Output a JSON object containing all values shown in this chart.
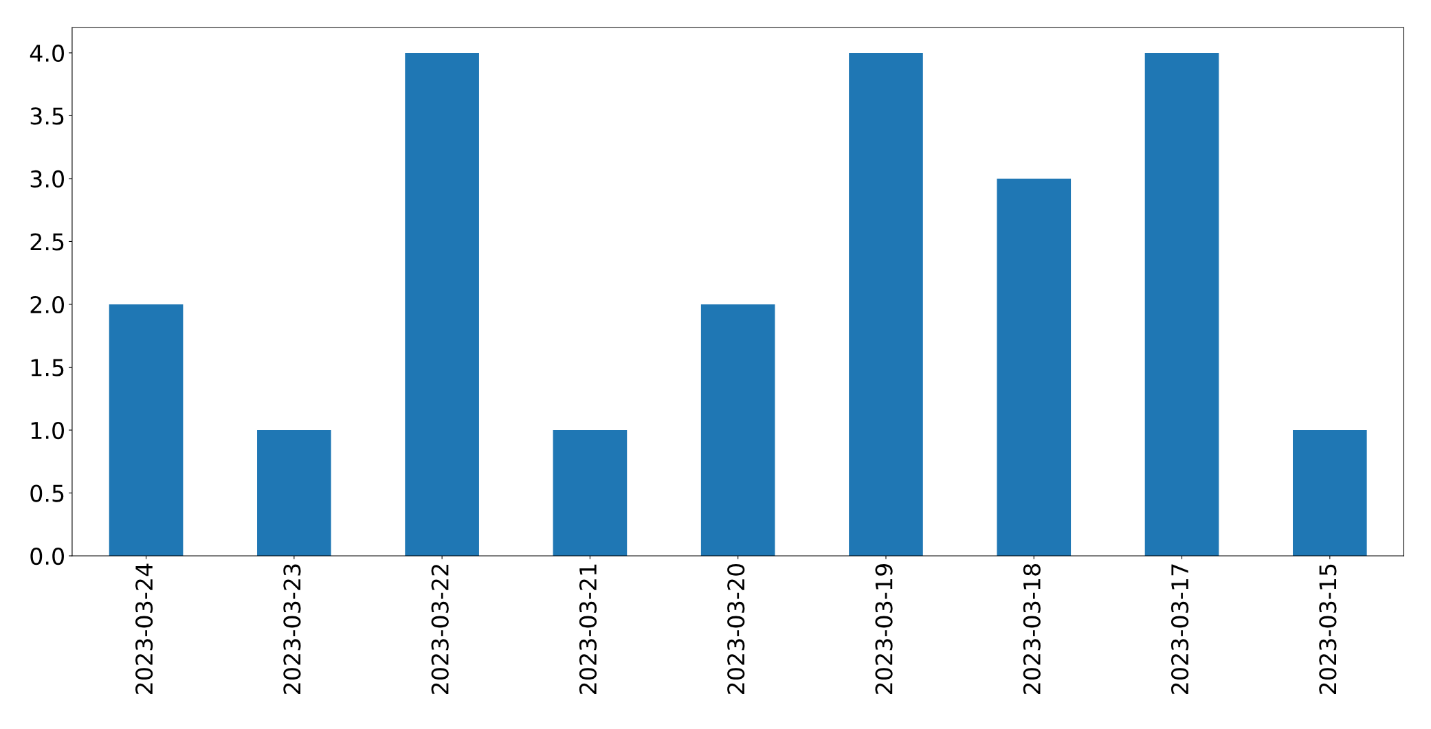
{
  "chart_data": {
    "type": "bar",
    "categories": [
      "2023-03-24",
      "2023-03-23",
      "2023-03-22",
      "2023-03-21",
      "2023-03-20",
      "2023-03-19",
      "2023-03-18",
      "2023-03-17",
      "2023-03-15"
    ],
    "values": [
      2,
      1,
      4,
      1,
      2,
      4,
      3,
      4,
      1
    ],
    "color": "#1f77b4",
    "ylim": [
      0,
      4.2
    ],
    "yticks": [
      {
        "value": 0,
        "label": "0.0"
      },
      {
        "value": 0.5,
        "label": "0.5"
      },
      {
        "value": 1,
        "label": "1.0"
      },
      {
        "value": 1.5,
        "label": "1.5"
      },
      {
        "value": 2,
        "label": "2.0"
      },
      {
        "value": 2.5,
        "label": "2.5"
      },
      {
        "value": 3,
        "label": "3.0"
      },
      {
        "value": 3.5,
        "label": "3.5"
      },
      {
        "value": 4,
        "label": "4.0"
      }
    ],
    "grid": false,
    "legend": false
  }
}
